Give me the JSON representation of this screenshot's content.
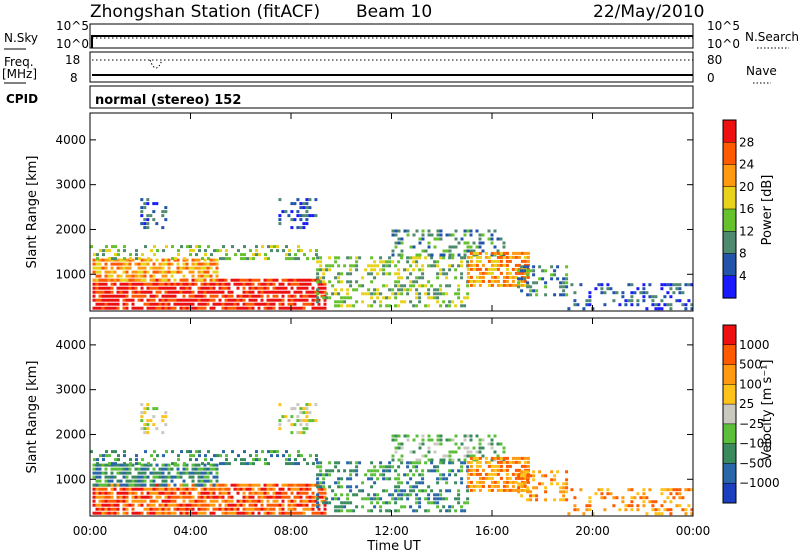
{
  "header": {
    "station": "Zhongshan Station (fitACF)",
    "beam": "Beam 10",
    "date": "22/May/2010"
  },
  "top_panels": {
    "nsky_label": "N.Sky",
    "nsky_ticks": [
      "10^5",
      "10^0"
    ],
    "nsearch_label": "N.Search",
    "nsearch_ticks": [
      "10^5",
      "10^0"
    ],
    "freq_label": "Freq.",
    "freq_unit": "[MHz]",
    "freq_ticks": [
      "18",
      "8"
    ],
    "nave_label": "Nave",
    "nave_ticks": [
      "80",
      "0"
    ],
    "cpid_label": "CPID",
    "cpid_text": "normal (stereo) 152"
  },
  "chart_data": [
    {
      "type": "heatmap",
      "panel": "power",
      "ylabel": "Slant Range [km]",
      "xlabel": "",
      "yticks": [
        "1000",
        "2000",
        "3000",
        "4000"
      ],
      "ylim": [
        180,
        4600
      ],
      "xlim": [
        0,
        24
      ],
      "colorbar": {
        "label": "Power [dB]",
        "tick_labels": [
          "4",
          "8",
          "12",
          "16",
          "20",
          "24",
          "28"
        ],
        "colors": [
          "#1a1aff",
          "#2255aa",
          "#4f8a6e",
          "#66c12e",
          "#e8d21a",
          "#ff9a10",
          "#ff5a00",
          "#ee1010"
        ]
      },
      "regions": [
        {
          "t0": 0.1,
          "t1": 9.4,
          "r0": 250,
          "r1": 900,
          "level": 7,
          "density": 0.85
        },
        {
          "t0": 0.1,
          "t1": 5.0,
          "r0": 850,
          "r1": 1350,
          "level": 5,
          "density": 0.7
        },
        {
          "t0": 0.0,
          "t1": 9.0,
          "r0": 1300,
          "r1": 1650,
          "level": 3,
          "density": 0.35
        },
        {
          "t0": 9.0,
          "t1": 15.0,
          "r0": 300,
          "r1": 1400,
          "level": 3,
          "density": 0.45
        },
        {
          "t0": 12.0,
          "t1": 16.5,
          "r0": 1400,
          "r1": 2000,
          "level": 2,
          "density": 0.4
        },
        {
          "t0": 15.0,
          "t1": 17.5,
          "r0": 700,
          "r1": 1500,
          "level": 5,
          "density": 0.7
        },
        {
          "t0": 17.0,
          "t1": 19.0,
          "r0": 500,
          "r1": 1200,
          "level": 2,
          "density": 0.4
        },
        {
          "t0": 19.0,
          "t1": 24.0,
          "r0": 250,
          "r1": 800,
          "level": 1,
          "density": 0.3
        },
        {
          "t0": 2.0,
          "t1": 3.0,
          "r0": 2000,
          "r1": 2700,
          "level": 1,
          "density": 0.35
        },
        {
          "t0": 7.5,
          "t1": 9.0,
          "r0": 2000,
          "r1": 2700,
          "level": 1,
          "density": 0.35
        }
      ]
    },
    {
      "type": "heatmap",
      "panel": "velocity",
      "ylabel": "Slant Range [km]",
      "xlabel": "Time UT",
      "yticks": [
        "1000",
        "2000",
        "3000",
        "4000"
      ],
      "xticks": [
        "00:00",
        "04:00",
        "08:00",
        "12:00",
        "16:00",
        "20:00",
        "00:00"
      ],
      "ylim": [
        180,
        4600
      ],
      "xlim": [
        0,
        24
      ],
      "colorbar": {
        "label": "Velocity [m s⁻¹]",
        "tick_labels": [
          "1000",
          "500",
          "100",
          "25",
          "−25",
          "−100",
          "−500",
          "−1000"
        ],
        "colors": [
          "#1c3fbf",
          "#2a67a8",
          "#3a8a5e",
          "#5cbf3a",
          "#c9c9c0",
          "#ffc21a",
          "#ff9a10",
          "#ff5a00",
          "#ee1010"
        ]
      },
      "regions": [
        {
          "t0": 0.1,
          "t1": 9.4,
          "r0": 250,
          "r1": 900,
          "level": 7,
          "density": 0.85
        },
        {
          "t0": 0.1,
          "t1": 5.0,
          "r0": 850,
          "r1": 1350,
          "level": 2,
          "density": 0.7
        },
        {
          "t0": 0.0,
          "t1": 9.0,
          "r0": 1300,
          "r1": 1650,
          "level": 2,
          "density": 0.35
        },
        {
          "t0": 9.0,
          "t1": 15.0,
          "r0": 300,
          "r1": 1400,
          "level": 2,
          "density": 0.45
        },
        {
          "t0": 12.0,
          "t1": 16.5,
          "r0": 1400,
          "r1": 2000,
          "level": 3,
          "density": 0.4
        },
        {
          "t0": 15.0,
          "t1": 17.5,
          "r0": 700,
          "r1": 1500,
          "level": 6,
          "density": 0.7
        },
        {
          "t0": 17.0,
          "t1": 19.0,
          "r0": 500,
          "r1": 1200,
          "level": 6,
          "density": 0.4
        },
        {
          "t0": 19.0,
          "t1": 24.0,
          "r0": 250,
          "r1": 800,
          "level": 6,
          "density": 0.3
        },
        {
          "t0": 2.0,
          "t1": 3.0,
          "r0": 2000,
          "r1": 2700,
          "level": 4,
          "density": 0.35
        },
        {
          "t0": 7.5,
          "t1": 9.0,
          "r0": 2000,
          "r1": 2700,
          "level": 4,
          "density": 0.35
        }
      ]
    }
  ]
}
